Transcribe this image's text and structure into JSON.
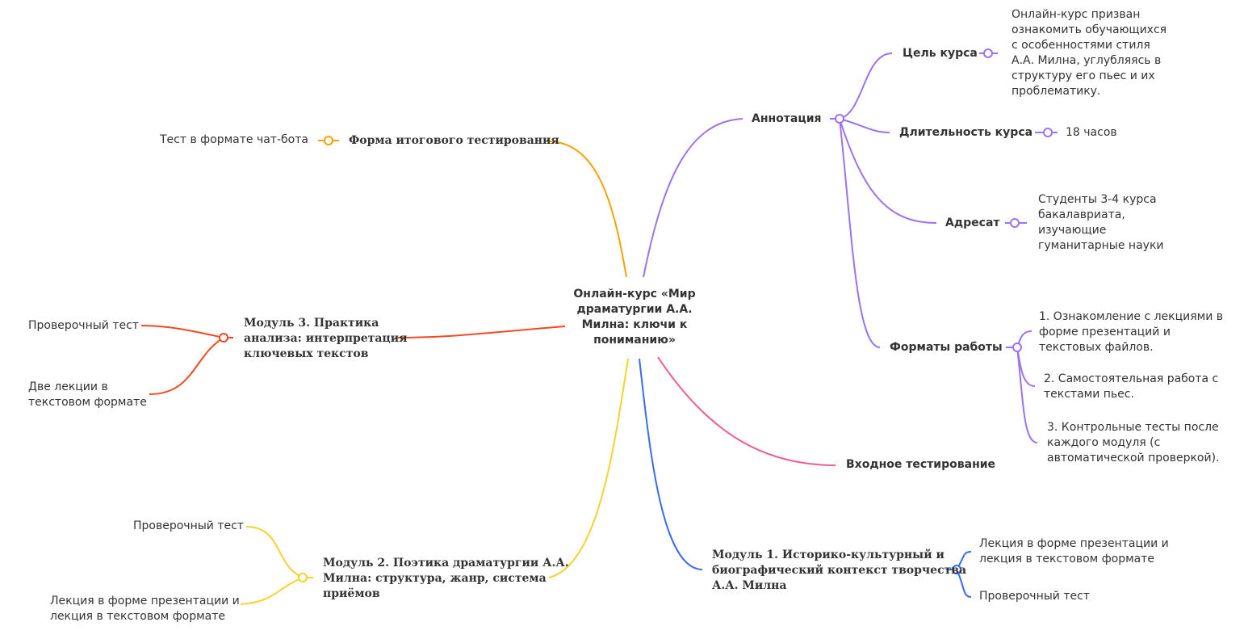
{
  "root": {
    "title_lines": [
      "Онлайн-курс «Мир",
      "драматургии А.А.",
      "Милна: ключи к",
      "пониманию»"
    ]
  },
  "colors": {
    "annotation": "#9b72f0",
    "final_test": "#f5a300",
    "module3": "#f04a1e",
    "module2": "#f7d22e",
    "module1": "#3b6af0",
    "entry_test": "#ef5a96",
    "text": "#333333"
  },
  "annotation": {
    "label": "Аннотация",
    "goal": {
      "label": "Цель курса",
      "text_lines": [
        "Онлайн-курс призван",
        "ознакомить обучающихся",
        "с особенностями стиля",
        "А.А. Милна, углубляясь в",
        "структуру его пьес и их",
        "проблематику."
      ]
    },
    "duration": {
      "label": "Длительность курса",
      "value": "18 часов"
    },
    "audience": {
      "label": "Адресат",
      "text_lines": [
        "Студенты 3-4 курса",
        "бакалавриата,",
        "изучающие",
        "гуманитарные науки"
      ]
    },
    "formats": {
      "label": "Форматы работы",
      "items": [
        {
          "lines": [
            "1. Ознакомление с лекциями в",
            "форме презентаций и",
            "текстовых файлов."
          ]
        },
        {
          "lines": [
            "2. Самостоятельная работа с",
            "текстами пьес."
          ]
        },
        {
          "lines": [
            "3. Контрольные тесты после",
            "каждого модуля (с",
            "автоматической проверкой)."
          ]
        }
      ]
    }
  },
  "entry_test": {
    "label": "Входное тестирование"
  },
  "final_test": {
    "label": "Форма итогового тестирования",
    "child": "Тест в формате чат-бота"
  },
  "module1": {
    "lines": [
      "Модуль 1. Историко-культурный и",
      "биографический контекст творчества",
      "А.А. Милна"
    ],
    "children": [
      {
        "lines": [
          "Лекция в форме презентации и",
          "лекция в текстовом формате"
        ]
      },
      {
        "lines": [
          "Проверочный тест"
        ]
      }
    ]
  },
  "module2": {
    "lines": [
      "Модуль 2. Поэтика драматургии А.А.",
      "Милна: структура, жанр, система",
      "приёмов"
    ],
    "children": [
      {
        "lines": [
          "Проверочный тест"
        ]
      },
      {
        "lines": [
          "Лекция в форме презентации и",
          "лекция в текстовом формате"
        ]
      }
    ]
  },
  "module3": {
    "lines": [
      "Модуль 3. Практика",
      "анализа: интерпретация",
      "ключевых текстов"
    ],
    "children": [
      {
        "lines": [
          "Проверочный тест"
        ]
      },
      {
        "lines": [
          "Две лекции в",
          "текстовом формате"
        ]
      }
    ]
  }
}
